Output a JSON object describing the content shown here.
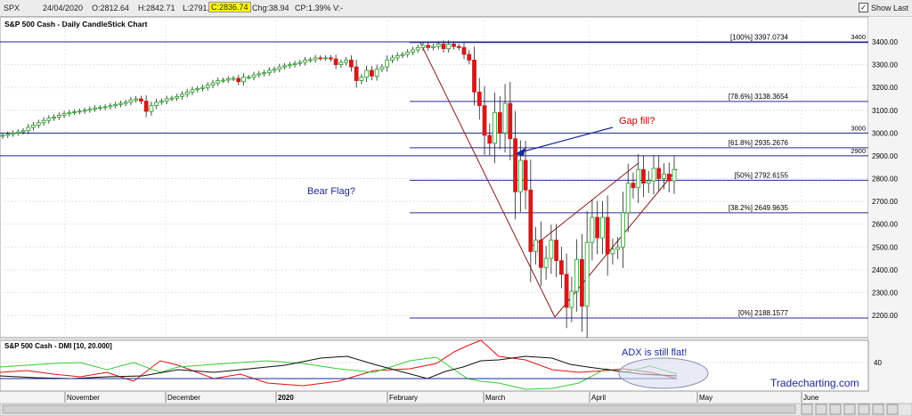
{
  "header": {
    "symbol": "SPX",
    "date": "24/04/2020",
    "open": "O:2812.64",
    "high": "H:2842.71",
    "low": "L:2791.76",
    "close": "C:2836.74",
    "change": "Chg:38.94",
    "change_pct": "CP:1.39%",
    "v": "V:-",
    "show_last": "Show Last"
  },
  "chart_data": {
    "type": "candlestick",
    "title": "S&P 500 Cash - Daily CandleStick Chart",
    "y_ticks": [
      "3400.00",
      "3300.00",
      "3200.00",
      "3100.00",
      "3000.00",
      "2900.00",
      "2800.00",
      "2700.00",
      "2600.00",
      "2500.00",
      "2400.00",
      "2300.00",
      "2200.00"
    ],
    "ylim": [
      2150,
      3430
    ],
    "x_months": [
      "November",
      "December",
      "2020",
      "February",
      "March",
      "April",
      "May",
      "June"
    ],
    "fib_levels": [
      {
        "label": "[100%] 3397.0734",
        "value": 3397.07
      },
      {
        "label": "[78.6%] 3138.3654",
        "value": 3138.37
      },
      {
        "label": "[61.8%] 2935.2676",
        "value": 2935.27
      },
      {
        "label": "[50%] 2792.6155",
        "value": 2792.62
      },
      {
        "label": "[38.2%] 2649.9635",
        "value": 2649.96
      },
      {
        "label": "[0%] 2188.1577",
        "value": 2188.16
      }
    ],
    "level_lines": [
      {
        "label": "3400",
        "value": 3400
      },
      {
        "label": "3000",
        "value": 3000
      },
      {
        "label": "2900",
        "value": 2900
      }
    ],
    "annotations": {
      "gap_fill": "Gap fill?",
      "bear_flag": "Bear Flag?",
      "adx": "ADX is still flat!"
    },
    "closes": [
      2990,
      2995,
      3000,
      3005,
      3010,
      3025,
      3035,
      3045,
      3055,
      3065,
      3070,
      3078,
      3085,
      3090,
      3093,
      3096,
      3100,
      3105,
      3110,
      3112,
      3115,
      3120,
      3125,
      3130,
      3135,
      3145,
      3150,
      3140,
      3095,
      3120,
      3135,
      3140,
      3150,
      3153,
      3160,
      3170,
      3180,
      3190,
      3195,
      3200,
      3210,
      3220,
      3230,
      3232,
      3238,
      3240,
      3225,
      3245,
      3245,
      3255,
      3260,
      3265,
      3275,
      3280,
      3290,
      3295,
      3300,
      3305,
      3310,
      3320,
      3322,
      3330,
      3328,
      3330,
      3325,
      3300,
      3310,
      3320,
      3290,
      3230,
      3245,
      3275,
      3250,
      3280,
      3290,
      3320,
      3330,
      3340,
      3345,
      3355,
      3365,
      3375,
      3385,
      3375,
      3380,
      3390,
      3370,
      3390,
      3380,
      3375,
      3345,
      3320,
      3180,
      3120,
      2990,
      2955,
      3090,
      3000,
      3130,
      2975,
      2742,
      2880,
      2750,
      2480,
      2530,
      2410,
      2450,
      2530,
      2440,
      2380,
      2235,
      2305,
      2445,
      2240,
      2520,
      2630,
      2540,
      2630,
      2470,
      2490,
      2500,
      2650,
      2780,
      2760,
      2840,
      2780,
      2790,
      2845,
      2800,
      2820,
      2790,
      2840
    ],
    "dmi_labels": {
      "title": "S&P 500 Cash - DMI [10, 20.000]",
      "tick": "40"
    },
    "watermark": "Tradecharting.com"
  }
}
